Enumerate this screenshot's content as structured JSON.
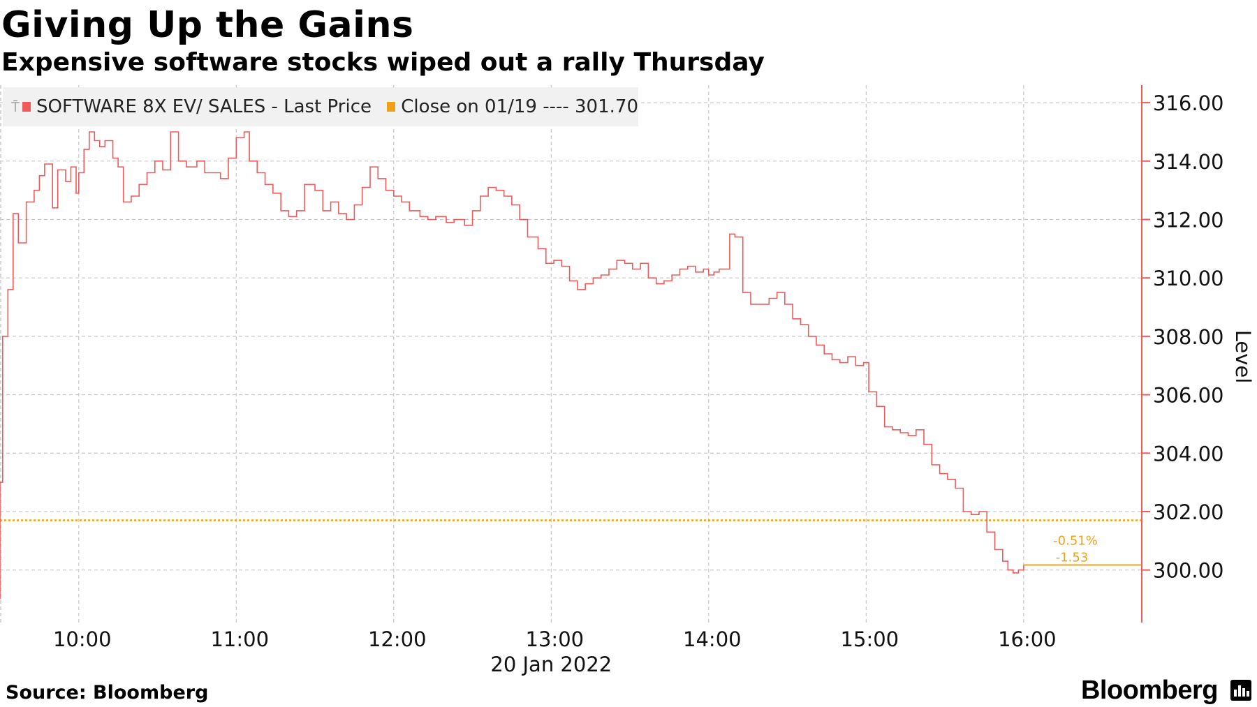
{
  "header": {
    "title": "Giving Up the Gains",
    "subtitle": "Expensive software stocks wiped out a rally Thursday"
  },
  "footer": {
    "source": "Source: Bloomberg",
    "brand": "Bloomberg",
    "brand_icon": "bloomberg-terminal-icon"
  },
  "colors": {
    "series": "#f05a5a",
    "reference": "#eea21b",
    "grid": "#c8c8c8",
    "axis": "#f05a5a"
  },
  "chart_data": {
    "type": "line",
    "title": "Giving Up the Gains",
    "subtitle": "Expensive software stocks wiped out a rally Thursday",
    "xlabel": "20 Jan 2022",
    "ylabel": "Level",
    "ylim": [
      298.2,
      316.6
    ],
    "xlim": [
      "09:30",
      "16:45"
    ],
    "x_ticks": [
      "10:00",
      "11:00",
      "12:00",
      "13:00",
      "14:00",
      "15:00",
      "16:00"
    ],
    "y_ticks": [
      "300.00",
      "302.00",
      "304.00",
      "306.00",
      "308.00",
      "310.00",
      "312.00",
      "314.00",
      "316.00"
    ],
    "grid": true,
    "legend_position": "top-left",
    "legend": [
      {
        "label": "SOFTWARE 8X EV/ SALES - Last Price",
        "color": "#f05a5a"
      },
      {
        "label": "Close on 01/19 ---- 301.70",
        "color": "#eea21b"
      }
    ],
    "reference_line": {
      "name": "Close on 01/19",
      "value": 301.7
    },
    "annotations": [
      {
        "text": "-0.51%",
        "color": "#eea21b"
      },
      {
        "text": "-1.53",
        "color": "#eea21b"
      }
    ],
    "last_value": 300.17,
    "series": [
      {
        "name": "SOFTWARE 8X EV/ SALES - Last Price",
        "x": [
          "09:30",
          "09:31",
          "09:33",
          "09:35",
          "09:37",
          "09:40",
          "09:43",
          "09:45",
          "09:47",
          "09:50",
          "09:52",
          "09:55",
          "09:57",
          "09:59",
          "10:00",
          "10:02",
          "10:04",
          "10:06",
          "10:08",
          "10:10",
          "10:13",
          "10:15",
          "10:17",
          "10:20",
          "10:23",
          "10:26",
          "10:29",
          "10:32",
          "10:35",
          "10:38",
          "10:41",
          "10:43",
          "10:45",
          "10:48",
          "10:51",
          "10:54",
          "10:57",
          "11:00",
          "11:03",
          "11:05",
          "11:08",
          "11:11",
          "11:14",
          "11:17",
          "11:20",
          "11:23",
          "11:26",
          "11:30",
          "11:33",
          "11:36",
          "11:39",
          "11:42",
          "11:45",
          "11:48",
          "11:51",
          "11:54",
          "11:57",
          "12:00",
          "12:03",
          "12:06",
          "12:10",
          "12:13",
          "12:16",
          "12:20",
          "12:23",
          "12:27",
          "12:30",
          "12:33",
          "12:36",
          "12:39",
          "12:42",
          "12:45",
          "12:48",
          "12:51",
          "12:55",
          "12:58",
          "13:01",
          "13:04",
          "13:07",
          "13:10",
          "13:13",
          "13:16",
          "13:19",
          "13:22",
          "13:25",
          "13:28",
          "13:31",
          "13:34",
          "13:37",
          "13:40",
          "13:43",
          "13:46",
          "13:49",
          "13:52",
          "13:55",
          "13:58",
          "14:00",
          "14:02",
          "14:04",
          "14:06",
          "14:08",
          "14:10",
          "14:13",
          "14:16",
          "14:20",
          "14:23",
          "14:26",
          "14:29",
          "14:32",
          "14:35",
          "14:38",
          "14:41",
          "14:44",
          "14:47",
          "14:50",
          "14:53",
          "14:56",
          "14:59",
          "15:01",
          "15:04",
          "15:07",
          "15:10",
          "15:13",
          "15:16",
          "15:19",
          "15:22",
          "15:25",
          "15:28",
          "15:31",
          "15:34",
          "15:37",
          "15:40",
          "15:43",
          "15:46",
          "15:49",
          "15:52",
          "15:54",
          "15:56",
          "15:58",
          "16:00"
        ],
        "values": [
          303.0,
          308.0,
          309.6,
          312.2,
          311.2,
          312.6,
          313.0,
          313.5,
          313.9,
          312.4,
          313.7,
          313.3,
          313.8,
          312.9,
          313.6,
          314.4,
          315.0,
          314.7,
          314.5,
          314.7,
          314.1,
          313.8,
          312.6,
          312.8,
          313.2,
          313.6,
          314.0,
          313.7,
          315.0,
          314.0,
          313.8,
          313.8,
          314.0,
          313.6,
          313.6,
          313.4,
          314.1,
          314.8,
          315.0,
          314.0,
          313.6,
          313.2,
          312.9,
          312.3,
          312.1,
          312.3,
          313.2,
          313.0,
          312.3,
          312.6,
          312.2,
          312.0,
          312.5,
          313.1,
          313.8,
          313.4,
          313.0,
          312.8,
          312.6,
          312.3,
          312.1,
          312.0,
          312.1,
          311.9,
          312.0,
          311.8,
          312.3,
          312.8,
          313.1,
          313.0,
          312.8,
          312.5,
          312.0,
          311.4,
          311.0,
          310.5,
          310.6,
          310.4,
          309.9,
          309.6,
          309.8,
          310.0,
          310.1,
          310.3,
          310.6,
          310.5,
          310.3,
          310.5,
          310.0,
          309.8,
          309.9,
          310.1,
          310.3,
          310.4,
          310.2,
          310.3,
          310.1,
          310.2,
          310.3,
          310.3,
          311.5,
          311.4,
          309.5,
          309.1,
          309.1,
          309.3,
          309.5,
          309.1,
          308.6,
          308.4,
          308.0,
          307.7,
          307.4,
          307.2,
          307.1,
          307.3,
          307.0,
          307.1,
          306.1,
          305.6,
          304.9,
          304.8,
          304.7,
          304.6,
          304.8,
          304.3,
          303.6,
          303.3,
          303.1,
          302.8,
          302.0,
          301.9,
          302.0,
          301.3,
          300.7,
          300.3,
          300.0,
          299.9,
          300.0,
          300.17
        ]
      }
    ]
  }
}
